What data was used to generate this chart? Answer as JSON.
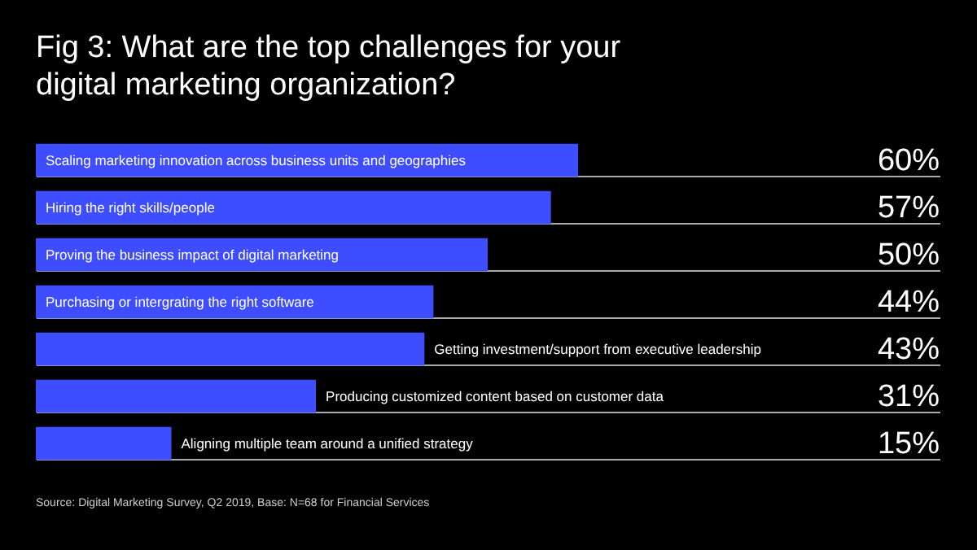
{
  "chart_data": {
    "type": "bar",
    "orientation": "horizontal",
    "title": "Fig 3: What are the top challenges for your digital marketing organization?",
    "categories": [
      "Scaling marketing innovation across business units and geographies",
      "Hiring the right skills/people",
      "Proving the business impact of digital marketing",
      "Purchasing or intergrating the right software",
      "Getting investment/support from executive leadership",
      "Producing customized content based on customer data",
      "Aligning multiple team around a unified strategy"
    ],
    "values": [
      60,
      57,
      50,
      44,
      43,
      31,
      15
    ],
    "value_labels": [
      "60%",
      "57%",
      "50%",
      "44%",
      "43%",
      "31%",
      "15%"
    ],
    "color": "#3d4dff",
    "xlim": [
      0,
      100
    ],
    "grid": "y",
    "tick_labels": false,
    "annotations": [
      "Source: Digital Marketing Survey, Q2 2019, Base: N=68 for Financial Services"
    ]
  }
}
